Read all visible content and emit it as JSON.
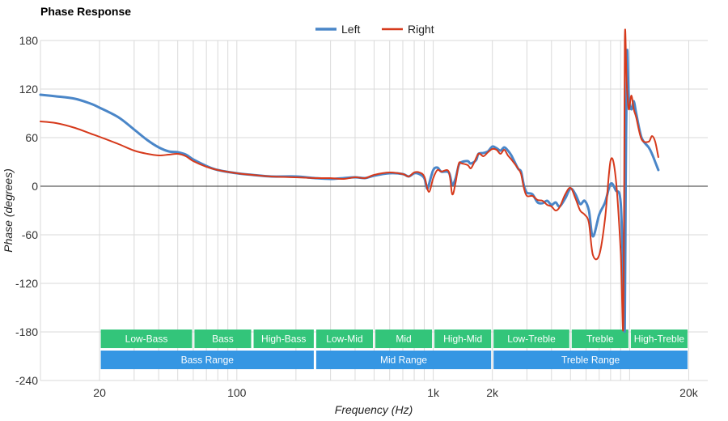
{
  "chart_data": {
    "type": "line",
    "title": "Phase Response",
    "xlabel": "Frequency (Hz)",
    "ylabel": "Phase (degrees)",
    "x_scale": "log",
    "xlim": [
      10,
      25000
    ],
    "ylim": [
      -240,
      180
    ],
    "x_ticks": [
      {
        "value": 20,
        "label": "20"
      },
      {
        "value": 100,
        "label": "100"
      },
      {
        "value": 1000,
        "label": "1k"
      },
      {
        "value": 2000,
        "label": "2k"
      },
      {
        "value": 20000,
        "label": "20k"
      }
    ],
    "y_ticks": [
      180,
      120,
      60,
      0,
      -60,
      -120,
      -180,
      -240
    ],
    "grid": true,
    "legend": "top-center",
    "series": [
      {
        "name": "Left",
        "color": "#4a86c8",
        "points": [
          [
            10,
            113
          ],
          [
            12,
            111
          ],
          [
            15,
            108
          ],
          [
            18,
            102
          ],
          [
            20,
            97
          ],
          [
            25,
            85
          ],
          [
            30,
            70
          ],
          [
            35,
            57
          ],
          [
            40,
            48
          ],
          [
            45,
            43
          ],
          [
            50,
            42
          ],
          [
            55,
            39
          ],
          [
            60,
            33
          ],
          [
            70,
            25
          ],
          [
            80,
            20
          ],
          [
            100,
            16
          ],
          [
            120,
            14
          ],
          [
            150,
            12
          ],
          [
            200,
            12
          ],
          [
            250,
            10
          ],
          [
            300,
            9
          ],
          [
            350,
            10
          ],
          [
            400,
            11
          ],
          [
            450,
            10
          ],
          [
            500,
            13
          ],
          [
            600,
            16
          ],
          [
            700,
            15
          ],
          [
            750,
            12
          ],
          [
            800,
            16
          ],
          [
            850,
            15
          ],
          [
            900,
            10
          ],
          [
            930,
            -3
          ],
          [
            950,
            2
          ],
          [
            1000,
            20
          ],
          [
            1050,
            23
          ],
          [
            1100,
            18
          ],
          [
            1200,
            17
          ],
          [
            1250,
            2
          ],
          [
            1300,
            10
          ],
          [
            1350,
            26
          ],
          [
            1400,
            30
          ],
          [
            1500,
            31
          ],
          [
            1550,
            28
          ],
          [
            1650,
            32
          ],
          [
            1700,
            40
          ],
          [
            1800,
            41
          ],
          [
            1900,
            43
          ],
          [
            2000,
            49
          ],
          [
            2100,
            47
          ],
          [
            2200,
            44
          ],
          [
            2300,
            48
          ],
          [
            2400,
            44
          ],
          [
            2500,
            38
          ],
          [
            2700,
            22
          ],
          [
            2800,
            18
          ],
          [
            2900,
            0
          ],
          [
            3000,
            -8
          ],
          [
            3200,
            -10
          ],
          [
            3400,
            -20
          ],
          [
            3600,
            -21
          ],
          [
            3800,
            -18
          ],
          [
            4000,
            -23
          ],
          [
            4200,
            -20
          ],
          [
            4400,
            -25
          ],
          [
            4700,
            -15
          ],
          [
            5000,
            -3
          ],
          [
            5300,
            -10
          ],
          [
            5600,
            -22
          ],
          [
            5900,
            -18
          ],
          [
            6200,
            -30
          ],
          [
            6500,
            -62
          ],
          [
            7000,
            -35
          ],
          [
            7500,
            -20
          ],
          [
            8000,
            3
          ],
          [
            8500,
            -5
          ],
          [
            9000,
            -20
          ],
          [
            9300,
            -120
          ],
          [
            9450,
            -175
          ],
          [
            9550,
            0
          ],
          [
            9700,
            165
          ],
          [
            9900,
            110
          ],
          [
            10200,
            95
          ],
          [
            10500,
            105
          ],
          [
            10800,
            90
          ],
          [
            11500,
            60
          ],
          [
            12500,
            48
          ],
          [
            13000,
            40
          ],
          [
            13500,
            30
          ],
          [
            14000,
            20
          ]
        ]
      },
      {
        "name": "Right",
        "color": "#d63a1c",
        "points": [
          [
            10,
            80
          ],
          [
            12,
            78
          ],
          [
            15,
            72
          ],
          [
            18,
            65
          ],
          [
            20,
            61
          ],
          [
            25,
            52
          ],
          [
            30,
            44
          ],
          [
            35,
            40
          ],
          [
            40,
            38
          ],
          [
            45,
            39
          ],
          [
            50,
            40
          ],
          [
            55,
            37
          ],
          [
            60,
            31
          ],
          [
            70,
            24
          ],
          [
            80,
            20
          ],
          [
            100,
            16
          ],
          [
            120,
            14
          ],
          [
            150,
            12
          ],
          [
            200,
            11
          ],
          [
            250,
            10
          ],
          [
            300,
            10
          ],
          [
            350,
            9
          ],
          [
            400,
            11
          ],
          [
            450,
            10
          ],
          [
            500,
            14
          ],
          [
            600,
            17
          ],
          [
            700,
            15
          ],
          [
            750,
            12
          ],
          [
            800,
            17
          ],
          [
            850,
            17
          ],
          [
            900,
            12
          ],
          [
            950,
            -7
          ],
          [
            1000,
            10
          ],
          [
            1050,
            20
          ],
          [
            1100,
            18
          ],
          [
            1200,
            18
          ],
          [
            1250,
            -10
          ],
          [
            1300,
            5
          ],
          [
            1350,
            28
          ],
          [
            1400,
            28
          ],
          [
            1500,
            26
          ],
          [
            1550,
            22
          ],
          [
            1600,
            27
          ],
          [
            1700,
            40
          ],
          [
            1800,
            37
          ],
          [
            1900,
            42
          ],
          [
            2000,
            46
          ],
          [
            2100,
            45
          ],
          [
            2200,
            40
          ],
          [
            2300,
            45
          ],
          [
            2400,
            38
          ],
          [
            2500,
            33
          ],
          [
            2700,
            22
          ],
          [
            2800,
            15
          ],
          [
            2900,
            -3
          ],
          [
            3000,
            -12
          ],
          [
            3200,
            -12
          ],
          [
            3400,
            -17
          ],
          [
            3600,
            -18
          ],
          [
            3800,
            -23
          ],
          [
            4000,
            -25
          ],
          [
            4200,
            -30
          ],
          [
            4400,
            -26
          ],
          [
            4700,
            -10
          ],
          [
            5000,
            -2
          ],
          [
            5300,
            -15
          ],
          [
            5600,
            -30
          ],
          [
            5900,
            -35
          ],
          [
            6200,
            -45
          ],
          [
            6500,
            -85
          ],
          [
            7000,
            -85
          ],
          [
            7500,
            -40
          ],
          [
            8000,
            32
          ],
          [
            8500,
            10
          ],
          [
            9000,
            -80
          ],
          [
            9300,
            -168
          ],
          [
            9450,
            178
          ],
          [
            9650,
            130
          ],
          [
            9900,
            95
          ],
          [
            10200,
            112
          ],
          [
            10500,
            95
          ],
          [
            10800,
            85
          ],
          [
            11500,
            58
          ],
          [
            12500,
            55
          ],
          [
            13000,
            62
          ],
          [
            13500,
            55
          ],
          [
            14000,
            36
          ]
        ]
      }
    ],
    "bands_top": [
      {
        "label": "Low-Bass",
        "from": 20,
        "to": 60
      },
      {
        "label": "Bass",
        "from": 60,
        "to": 120
      },
      {
        "label": "High-Bass",
        "from": 120,
        "to": 250
      },
      {
        "label": "Low-Mid",
        "from": 250,
        "to": 500
      },
      {
        "label": "Mid",
        "from": 500,
        "to": 1000
      },
      {
        "label": "High-Mid",
        "from": 1000,
        "to": 2000
      },
      {
        "label": "Low-Treble",
        "from": 2000,
        "to": 5000
      },
      {
        "label": "Treble",
        "from": 5000,
        "to": 10000
      },
      {
        "label": "High-Treble",
        "from": 10000,
        "to": 20000
      }
    ],
    "bands_bottom": [
      {
        "label": "Bass Range",
        "from": 20,
        "to": 250
      },
      {
        "label": "Mid Range",
        "from": 250,
        "to": 2000
      },
      {
        "label": "Treble Range",
        "from": 2000,
        "to": 20000
      }
    ],
    "band_colors": {
      "top": "#33c57a",
      "bottom": "#3596e3"
    }
  }
}
